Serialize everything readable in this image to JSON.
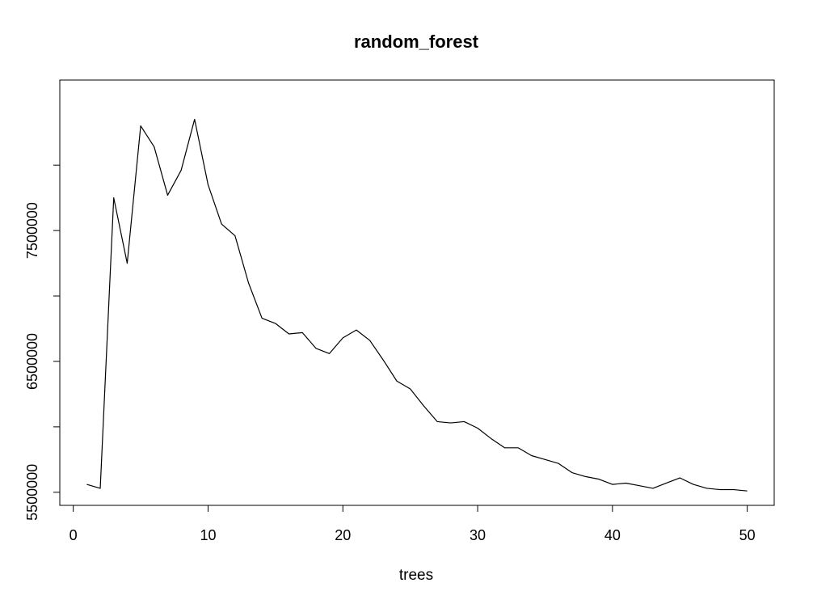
{
  "chart_data": {
    "type": "line",
    "title": "random_forest",
    "xlabel": "trees",
    "ylabel": "",
    "xlim": [
      -1,
      52
    ],
    "ylim": [
      5400000,
      8650000
    ],
    "x_ticks": [
      0,
      10,
      20,
      30,
      40,
      50
    ],
    "y_ticks": [
      5500000,
      6000000,
      6500000,
      7000000,
      7500000,
      8000000
    ],
    "y_tick_labels": [
      "5500000",
      "",
      "6500000",
      "",
      "7500000",
      ""
    ],
    "grid": false,
    "legend": "none",
    "series": [
      {
        "color": "#000000",
        "x": [
          1,
          2,
          3,
          4,
          5,
          6,
          7,
          8,
          9,
          10,
          11,
          12,
          13,
          14,
          15,
          16,
          17,
          18,
          19,
          20,
          21,
          22,
          23,
          24,
          25,
          26,
          27,
          28,
          29,
          30,
          31,
          32,
          33,
          34,
          35,
          36,
          37,
          38,
          39,
          40,
          41,
          42,
          43,
          44,
          45,
          46,
          47,
          48,
          49,
          50
        ],
        "values": [
          5560000,
          5530000,
          7750000,
          7250000,
          8300000,
          8140000,
          7770000,
          7960000,
          8350000,
          7850000,
          7550000,
          7460000,
          7100000,
          6830000,
          6790000,
          6710000,
          6720000,
          6600000,
          6560000,
          6680000,
          6740000,
          6660000,
          6510000,
          6350000,
          6290000,
          6160000,
          6040000,
          6030000,
          6040000,
          5990000,
          5910000,
          5840000,
          5840000,
          5780000,
          5750000,
          5720000,
          5650000,
          5620000,
          5600000,
          5560000,
          5570000,
          5550000,
          5530000,
          5570000,
          5610000,
          5560000,
          5530000,
          5520000,
          5520000,
          5510000
        ]
      }
    ]
  }
}
